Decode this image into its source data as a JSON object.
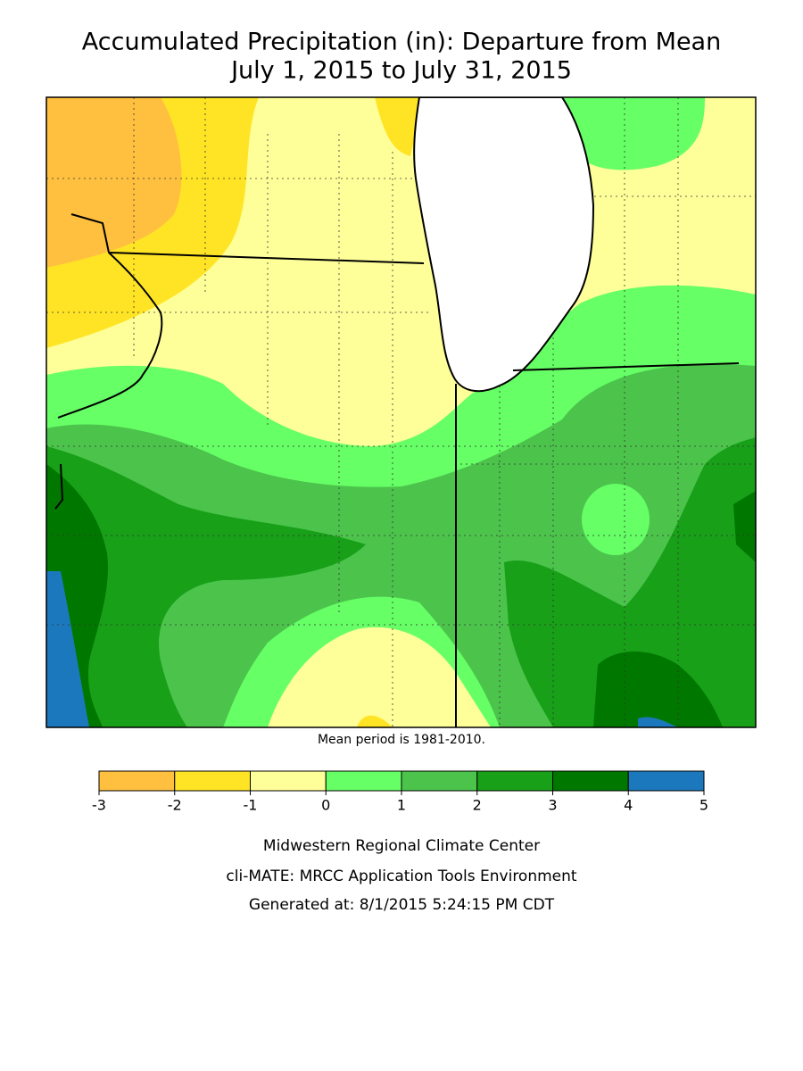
{
  "header": {
    "title_lines": [
      "Accumulated Precipitation (in): Departure from Mean",
      "July 1, 2015 to July 31, 2015"
    ]
  },
  "map": {
    "note": "Mean period is 1981-2010."
  },
  "legend": {
    "ticks": [
      -3,
      -2,
      -1,
      0,
      1,
      2,
      3,
      4,
      5
    ],
    "colors": [
      "#ffc040",
      "#ffe426",
      "#ffff99",
      "#66ff66",
      "#4cc44c",
      "#18a018",
      "#007800",
      "#1c78bc"
    ]
  },
  "footer": {
    "lines": [
      "Midwestern Regional Climate Center",
      "cli-MATE: MRCC Application Tools Environment",
      "Generated at: 8/1/2015 5:24:15 PM CDT"
    ]
  }
}
